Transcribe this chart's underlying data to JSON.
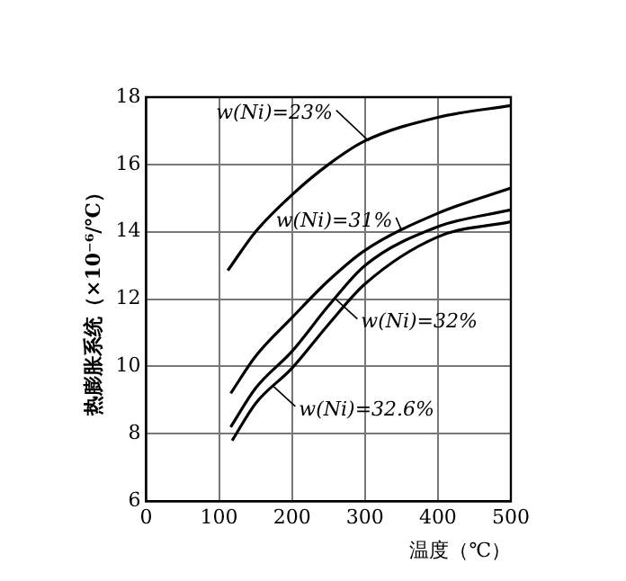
{
  "chart_data": {
    "type": "line",
    "xlabel": "温度（℃）",
    "ylabel": "热膨胀系统（×10⁻⁶/℃）",
    "xlim": [
      0,
      500
    ],
    "xticks": [
      0,
      100,
      200,
      300,
      400,
      500
    ],
    "ylim": [
      6,
      18
    ],
    "yticks": [
      6,
      8,
      10,
      12,
      14,
      16,
      18
    ],
    "grid": true,
    "legend": false,
    "marker": "none",
    "line_style": "solid",
    "series": [
      {
        "color": "#000000",
        "x": [
          112,
          150,
          200,
          250,
          300,
          400,
          500
        ],
        "values": [
          12.85,
          14.0,
          15.1,
          16.0,
          16.7,
          17.4,
          17.75
        ]
      },
      {
        "color": "#000000",
        "x": [
          116,
          150,
          200,
          250,
          300,
          400,
          500
        ],
        "values": [
          9.2,
          10.3,
          11.45,
          12.55,
          13.45,
          14.55,
          15.3
        ]
      },
      {
        "color": "#000000",
        "x": [
          116,
          150,
          200,
          250,
          300,
          400,
          500
        ],
        "values": [
          8.2,
          9.35,
          10.45,
          11.8,
          13.0,
          14.15,
          14.65
        ]
      },
      {
        "color": "#000000",
        "x": [
          118,
          150,
          200,
          250,
          300,
          400,
          500
        ],
        "values": [
          7.8,
          8.9,
          9.95,
          11.25,
          12.45,
          13.85,
          14.3
        ]
      }
    ],
    "annotations": [
      {
        "text": "w(Ni)=23%",
        "x": 305,
        "y": 16.7
      },
      {
        "text": "w(Ni)=31%",
        "x": 350,
        "y": 14.05
      },
      {
        "text": "w(Ni)=32%",
        "x": 260,
        "y": 12.0
      },
      {
        "text": "w(Ni)=32.6%",
        "x": 175,
        "y": 9.4
      }
    ]
  }
}
